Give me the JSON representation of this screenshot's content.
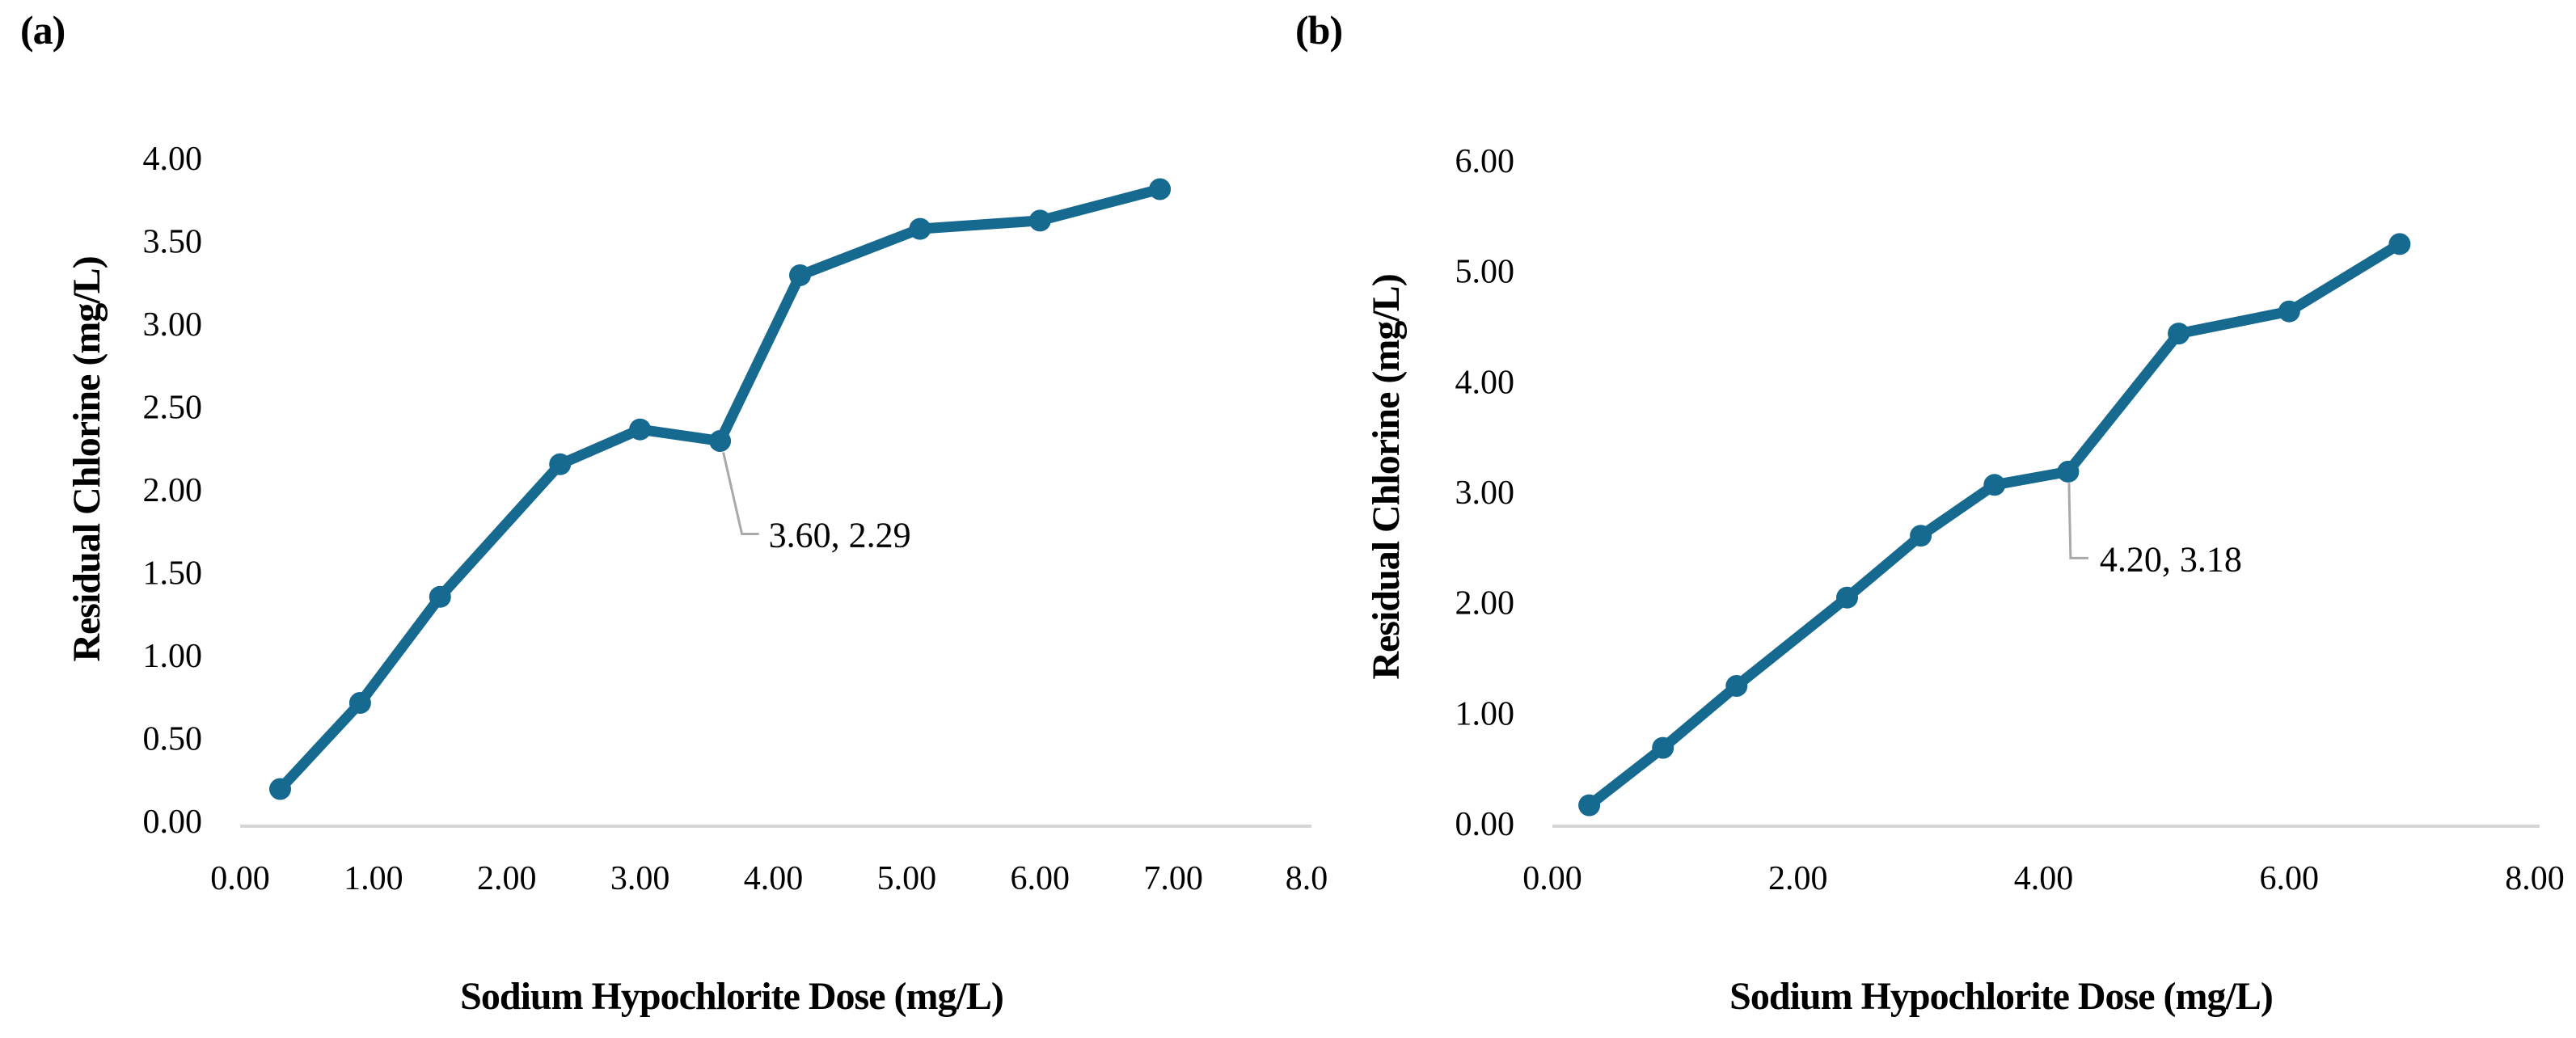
{
  "figure": {
    "background": "#ffffff",
    "panels": [
      {
        "tag": "(a)"
      },
      {
        "tag": "(b)"
      }
    ]
  },
  "chart_data": [
    {
      "type": "line",
      "panel": "(a)",
      "xlabel": "Sodium Hypochlorite Dose (mg/L)",
      "ylabel": "Residual Chlorine (mg/L)",
      "xlim": [
        0,
        8
      ],
      "ylim": [
        0,
        4
      ],
      "x_ticks": [
        {
          "value": 0,
          "label": "0.00"
        },
        {
          "value": 1,
          "label": "1.00"
        },
        {
          "value": 2,
          "label": "2.00"
        },
        {
          "value": 3,
          "label": "3.00"
        },
        {
          "value": 4,
          "label": "4.00"
        },
        {
          "value": 5,
          "label": "5.00"
        },
        {
          "value": 6,
          "label": "6.00"
        },
        {
          "value": 7,
          "label": "7.00"
        },
        {
          "value": 8,
          "label": "8.0"
        }
      ],
      "y_ticks": [
        {
          "value": 0.0,
          "label": "0.00"
        },
        {
          "value": 0.5,
          "label": "0.50"
        },
        {
          "value": 1.0,
          "label": "1.00"
        },
        {
          "value": 1.5,
          "label": "1.50"
        },
        {
          "value": 2.0,
          "label": "2.00"
        },
        {
          "value": 2.5,
          "label": "2.50"
        },
        {
          "value": 3.0,
          "label": "3.00"
        },
        {
          "value": 3.5,
          "label": "3.50"
        },
        {
          "value": 4.0,
          "label": "4.00"
        }
      ],
      "series": [
        {
          "name": "residual-chlorine-curve",
          "x": [
            0.3,
            0.9,
            1.5,
            2.4,
            3.0,
            3.6,
            4.2,
            5.1,
            6.0,
            6.9
          ],
          "y": [
            0.19,
            0.71,
            1.35,
            2.15,
            2.36,
            2.29,
            3.29,
            3.57,
            3.62,
            3.81
          ]
        }
      ],
      "annotation": {
        "x": 3.6,
        "y": 2.29,
        "label": "3.60, 2.29"
      },
      "grid": false,
      "legend": false,
      "colors": {
        "line": "#16698f",
        "marker": "#16698f",
        "axis_line": "#d6d6d6",
        "leader_line": "#a9a9a9",
        "text": "#000000"
      }
    },
    {
      "type": "line",
      "panel": "(b)",
      "xlabel": "Sodium Hypochlorite Dose (mg/L)",
      "ylabel": "Residual Chlorine (mg/L)",
      "xlim": [
        0,
        8
      ],
      "ylim": [
        0,
        6
      ],
      "x_ticks": [
        {
          "value": 0,
          "label": "0.00"
        },
        {
          "value": 2,
          "label": "2.00"
        },
        {
          "value": 4,
          "label": "4.00"
        },
        {
          "value": 6,
          "label": "6.00"
        },
        {
          "value": 8,
          "label": "8.00"
        }
      ],
      "y_ticks": [
        {
          "value": 0,
          "label": "0.00"
        },
        {
          "value": 1,
          "label": "1.00"
        },
        {
          "value": 2,
          "label": "2.00"
        },
        {
          "value": 3,
          "label": "3.00"
        },
        {
          "value": 4,
          "label": "4.00"
        },
        {
          "value": 5,
          "label": "5.00"
        },
        {
          "value": 6,
          "label": "6.00"
        }
      ],
      "series": [
        {
          "name": "residual-chlorine-curve",
          "x": [
            0.3,
            0.9,
            1.5,
            2.4,
            3.0,
            3.6,
            4.2,
            5.1,
            6.0,
            6.9
          ],
          "y": [
            0.16,
            0.68,
            1.24,
            2.04,
            2.6,
            3.06,
            3.18,
            4.43,
            4.63,
            5.24
          ]
        }
      ],
      "annotation": {
        "x": 4.2,
        "y": 3.18,
        "label": "4.20, 3.18"
      },
      "grid": false,
      "legend": false,
      "colors": {
        "line": "#16698f",
        "marker": "#16698f",
        "axis_line": "#d6d6d6",
        "leader_line": "#a9a9a9",
        "text": "#000000"
      }
    }
  ]
}
